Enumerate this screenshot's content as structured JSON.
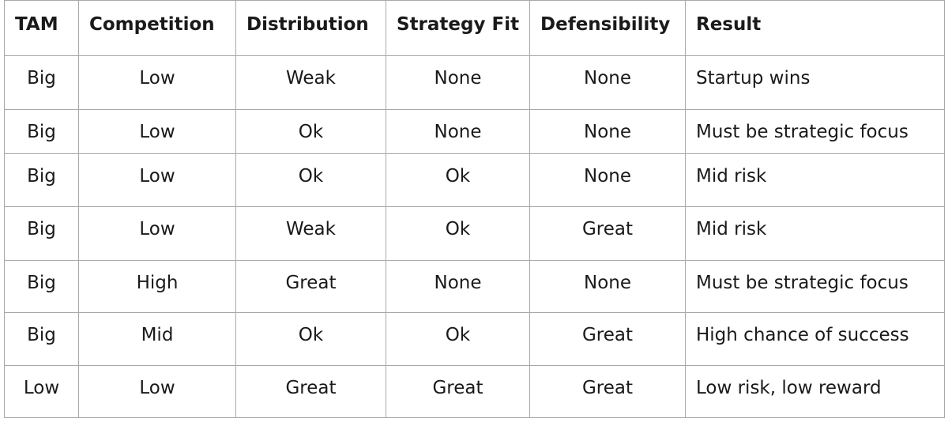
{
  "table": {
    "headers": [
      "TAM",
      "Competition",
      "Distribution",
      "Strategy Fit",
      "Defensibility",
      "Result"
    ],
    "rows": [
      [
        "Big",
        "Low",
        "Weak",
        "None",
        "None",
        "Startup wins"
      ],
      [
        "Big",
        "Low",
        "Ok",
        "None",
        "None",
        "Must be strategic focus"
      ],
      [
        "Big",
        "Low",
        "Ok",
        "Ok",
        "None",
        "Mid risk"
      ],
      [
        "Big",
        "Low",
        "Weak",
        "Ok",
        "Great",
        "Mid risk"
      ],
      [
        "Big",
        "High",
        "Great",
        "None",
        "None",
        "Must be strategic focus"
      ],
      [
        "Big",
        "Mid",
        "Ok",
        "Ok",
        "Great",
        "High chance of success"
      ],
      [
        "Low",
        "Low",
        "Great",
        "Great",
        "Great",
        "Low risk, low reward"
      ]
    ]
  }
}
